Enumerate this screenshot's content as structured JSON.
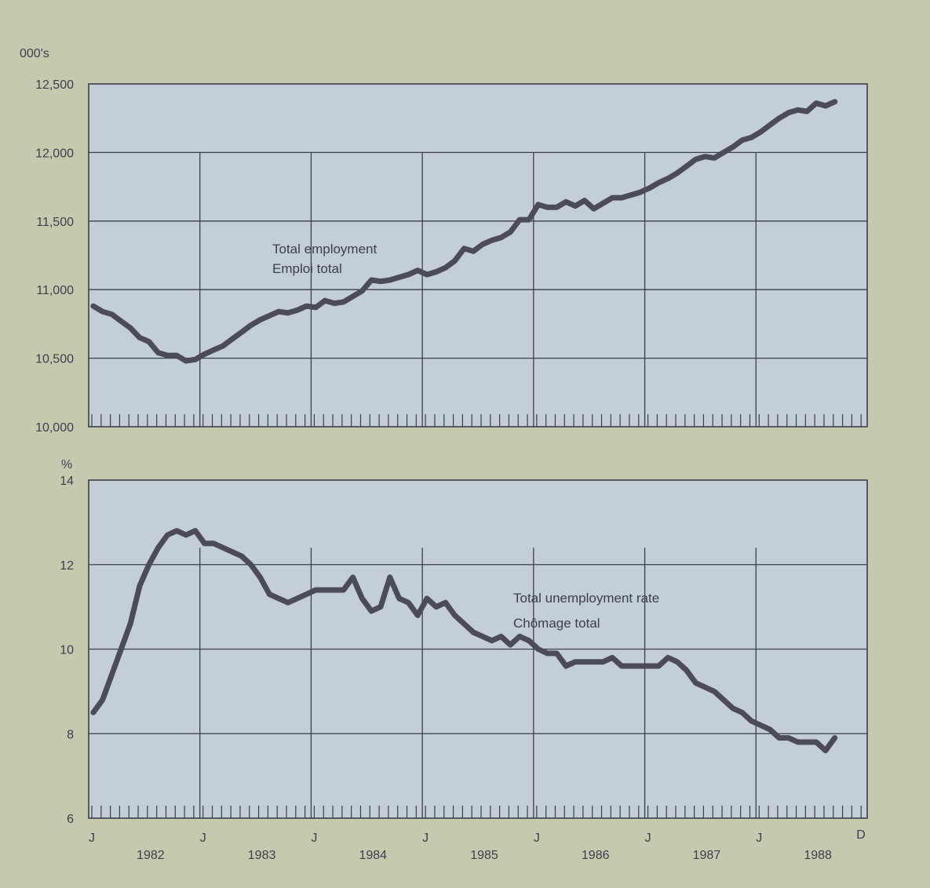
{
  "chart_data": [
    {
      "type": "line",
      "unit_label": "000's",
      "yticks": [
        "10,000",
        "10,500",
        "11,000",
        "11,500",
        "12,000",
        "12,500"
      ],
      "ylim": [
        10000,
        12500
      ],
      "annotation_lines": [
        "Total employment",
        "Emploi total"
      ],
      "series": [
        {
          "values": [
            10880,
            10840,
            10820,
            10770,
            10720,
            10650,
            10620,
            10540,
            10520,
            10520,
            10480,
            10490,
            10530,
            10560,
            10590,
            10640,
            10690,
            10740,
            10780,
            10810,
            10840,
            10830,
            10850,
            10880,
            10870,
            10920,
            10900,
            10910,
            10950,
            10990,
            11070,
            11060,
            11070,
            11090,
            11110,
            11140,
            11110,
            11130,
            11160,
            11210,
            11300,
            11280,
            11330,
            11360,
            11380,
            11420,
            11510,
            11510,
            11620,
            11600,
            11600,
            11640,
            11610,
            11650,
            11590,
            11630,
            11670,
            11670,
            11690,
            11710,
            11740,
            11780,
            11810,
            11850,
            11900,
            11950,
            11970,
            11960,
            12000,
            12040,
            12090,
            12110,
            12150,
            12200,
            12250,
            12290,
            12310,
            12300,
            12360,
            12340,
            12370
          ]
        }
      ]
    },
    {
      "type": "line",
      "unit_label": "%",
      "yticks": [
        "6",
        "8",
        "10",
        "12",
        "14"
      ],
      "ylim": [
        6,
        14
      ],
      "annotation_lines": [
        "Total unemployment rate",
        "Chômage total"
      ],
      "series": [
        {
          "values": [
            8.5,
            8.8,
            9.4,
            10.0,
            10.6,
            11.5,
            12.0,
            12.4,
            12.7,
            12.8,
            12.7,
            12.8,
            12.5,
            12.5,
            12.4,
            12.3,
            12.2,
            12.0,
            11.7,
            11.3,
            11.2,
            11.1,
            11.2,
            11.3,
            11.4,
            11.4,
            11.4,
            11.4,
            11.7,
            11.2,
            10.9,
            11.0,
            11.7,
            11.2,
            11.1,
            10.8,
            11.2,
            11.0,
            11.1,
            10.8,
            10.6,
            10.4,
            10.3,
            10.2,
            10.3,
            10.1,
            10.3,
            10.2,
            10.0,
            9.9,
            9.9,
            9.6,
            9.7,
            9.7,
            9.7,
            9.7,
            9.8,
            9.6,
            9.6,
            9.6,
            9.6,
            9.6,
            9.8,
            9.7,
            9.5,
            9.2,
            9.1,
            9.0,
            8.8,
            8.6,
            8.5,
            8.3,
            8.2,
            8.1,
            7.9,
            7.9,
            7.8,
            7.8,
            7.8,
            7.6,
            7.9
          ]
        }
      ]
    }
  ],
  "x_axis": {
    "start_label": "J",
    "end_label": "D",
    "year_start_labels": [
      "J",
      "J",
      "J",
      "J",
      "J",
      "J",
      "J"
    ],
    "years": [
      "1982",
      "1983",
      "1984",
      "1985",
      "1986",
      "1987",
      "1988"
    ]
  }
}
